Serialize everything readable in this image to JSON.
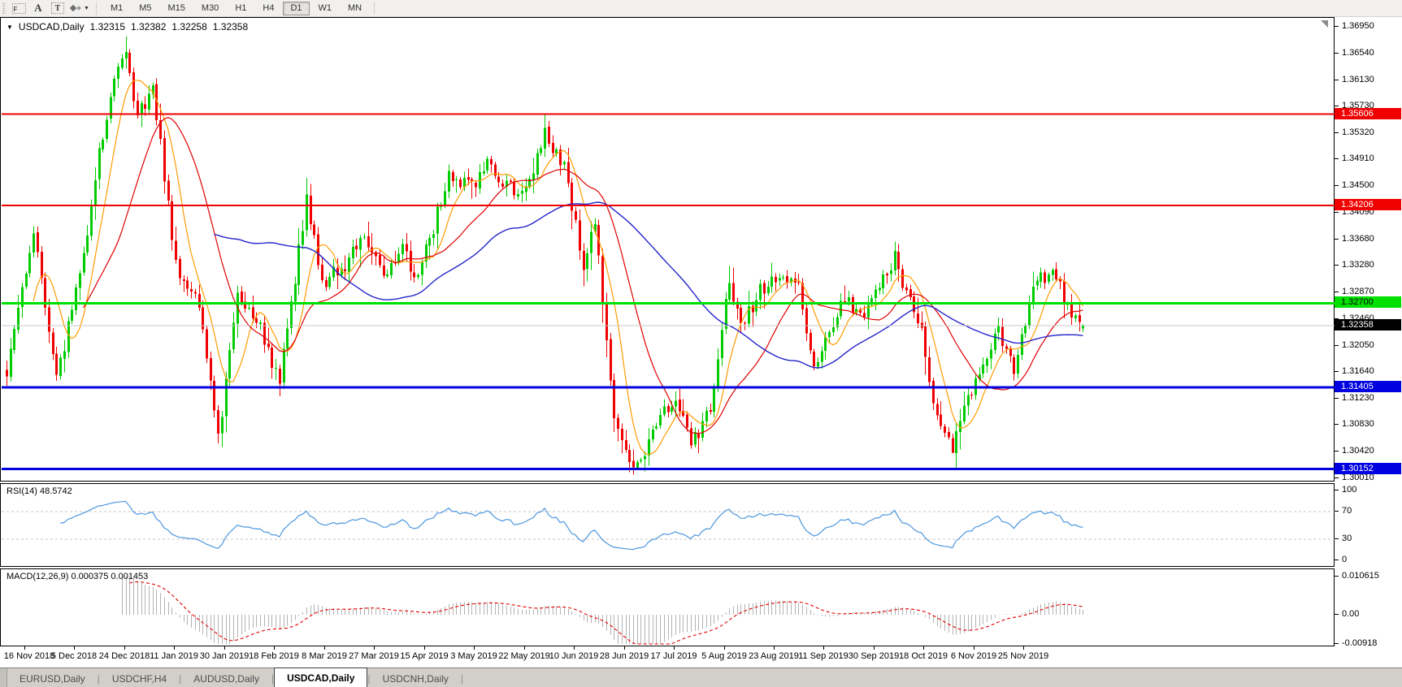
{
  "toolbar": {
    "tools": [
      {
        "name": "chart-f-tool",
        "label": "F"
      },
      {
        "name": "font-tool",
        "label": "A"
      },
      {
        "name": "text-tool",
        "label": "T"
      },
      {
        "name": "objects-tool",
        "label": ""
      }
    ],
    "timeframes": [
      "M1",
      "M5",
      "M15",
      "M30",
      "H1",
      "H4",
      "D1",
      "W1",
      "MN"
    ],
    "active_timeframe": "D1"
  },
  "chart": {
    "title": {
      "symbol": "USDCAD,Daily",
      "open": "1.32315",
      "high": "1.32382",
      "low": "1.32258",
      "close": "1.32358"
    }
  },
  "chart_data": {
    "type": "candlestick",
    "symbol": "USDCAD",
    "timeframe": "Daily",
    "last_ohlc": {
      "open": 1.32315,
      "high": 1.32382,
      "low": 1.32258,
      "close": 1.32358
    },
    "y_axis": {
      "min": 1.3001,
      "max": 1.3695,
      "ticks": [
        "1.36950",
        "1.36540",
        "1.36130",
        "1.35730",
        "1.35320",
        "1.34910",
        "1.34500",
        "1.34090",
        "1.33680",
        "1.33280",
        "1.32870",
        "1.32460",
        "1.32050",
        "1.31640",
        "1.31230",
        "1.30830",
        "1.30420",
        "1.30010"
      ]
    },
    "x_axis": {
      "ticks": [
        "16 Nov 2018",
        "5 Dec 2018",
        "24 Dec 2018",
        "11 Jan 2019",
        "30 Jan 2019",
        "18 Feb 2019",
        "8 Mar 2019",
        "27 Mar 2019",
        "15 Apr 2019",
        "3 May 2019",
        "22 May 2019",
        "10 Jun 2019",
        "28 Jun 2019",
        "17 Jul 2019",
        "5 Aug 2019",
        "23 Aug 2019",
        "11 Sep 2019",
        "30 Sep 2019",
        "18 Oct 2019",
        "6 Nov 2019",
        "25 Nov 2019"
      ]
    },
    "horizontal_lines": [
      {
        "price": 1.35606,
        "label": "1.35606",
        "color": "#f00000",
        "text": "#ffffff",
        "width": 2,
        "type": "resistance"
      },
      {
        "price": 1.34206,
        "label": "1.34206",
        "color": "#f00000",
        "text": "#ffffff",
        "width": 2,
        "type": "resistance"
      },
      {
        "price": 1.327,
        "label": "1.32700",
        "color": "#00e000",
        "text": "#000000",
        "width": 3,
        "type": "pivot"
      },
      {
        "price": 1.31405,
        "label": "1.31405",
        "color": "#0000e0",
        "text": "#ffffff",
        "width": 3,
        "type": "support"
      },
      {
        "price": 1.30152,
        "label": "1.30152",
        "color": "#0000e0",
        "text": "#ffffff",
        "width": 3,
        "type": "support"
      }
    ],
    "current_price": {
      "value": 1.32358,
      "label": "1.32358",
      "line_color": "#c8c8c8",
      "flag_bg": "#000000",
      "flag_text": "#ffffff"
    },
    "candles": {
      "count": 281,
      "up_color": "#00cc00",
      "down_color": "#f00000",
      "close_anchors": [
        [
          0,
          1.3165
        ],
        [
          7,
          1.338
        ],
        [
          13,
          1.315
        ],
        [
          20,
          1.3345
        ],
        [
          24,
          1.35
        ],
        [
          28,
          1.362
        ],
        [
          31,
          1.3655
        ],
        [
          34,
          1.3555
        ],
        [
          38,
          1.3605
        ],
        [
          44,
          1.333
        ],
        [
          50,
          1.327
        ],
        [
          55,
          1.306
        ],
        [
          60,
          1.328
        ],
        [
          66,
          1.323
        ],
        [
          71,
          1.315
        ],
        [
          78,
          1.343
        ],
        [
          82,
          1.33
        ],
        [
          88,
          1.333
        ],
        [
          93,
          1.337
        ],
        [
          98,
          1.331
        ],
        [
          103,
          1.335
        ],
        [
          107,
          1.331
        ],
        [
          115,
          1.3465
        ],
        [
          121,
          1.345
        ],
        [
          125,
          1.3485
        ],
        [
          130,
          1.345
        ],
        [
          135,
          1.3445
        ],
        [
          140,
          1.353
        ],
        [
          145,
          1.348
        ],
        [
          150,
          1.333
        ],
        [
          153,
          1.3395
        ],
        [
          158,
          1.309
        ],
        [
          161,
          1.304
        ],
        [
          164,
          1.3018
        ],
        [
          167,
          1.306
        ],
        [
          171,
          1.31
        ],
        [
          175,
          1.3115
        ],
        [
          178,
          1.3048
        ],
        [
          183,
          1.311
        ],
        [
          188,
          1.331
        ],
        [
          191,
          1.323
        ],
        [
          196,
          1.329
        ],
        [
          202,
          1.331
        ],
        [
          206,
          1.329
        ],
        [
          210,
          1.317
        ],
        [
          214,
          1.323
        ],
        [
          218,
          1.328
        ],
        [
          222,
          1.325
        ],
        [
          227,
          1.3295
        ],
        [
          231,
          1.334
        ],
        [
          235,
          1.327
        ],
        [
          238,
          1.323
        ],
        [
          242,
          1.309
        ],
        [
          246,
          1.3045
        ],
        [
          250,
          1.313
        ],
        [
          254,
          1.3165
        ],
        [
          258,
          1.323
        ],
        [
          262,
          1.317
        ],
        [
          268,
          1.331
        ],
        [
          273,
          1.3315
        ],
        [
          277,
          1.3245
        ],
        [
          280,
          1.32358
        ]
      ],
      "overrides": {
        "31": {
          "high": 1.368
        },
        "140": {
          "high": 1.356
        },
        "164": {
          "low": 1.30152
        },
        "246": {
          "low": 1.304
        },
        "280": {
          "open": 1.32315,
          "high": 1.32382,
          "low": 1.32258,
          "close": 1.32358
        }
      }
    },
    "moving_averages": [
      {
        "name": "ma-fast",
        "period": 8,
        "color": "#ff9c00"
      },
      {
        "name": "ma-mid",
        "period": 21,
        "color": "#e00000"
      },
      {
        "name": "ma-slow",
        "period": 55,
        "color": "#2424cc"
      }
    ],
    "rsi": {
      "label": "RSI(14) 48.5742",
      "period": 14,
      "current": 48.5742,
      "scale_ticks": [
        100,
        70,
        30,
        0
      ],
      "guide_levels": [
        70,
        30
      ],
      "color": "#4c97df"
    },
    "macd": {
      "label": "MACD(12,26,9) 0.000375 0.001453",
      "params": [
        12,
        26,
        9
      ],
      "main": 0.000375,
      "signal": 0.001453,
      "scale_ticks": [
        {
          "v": 0.010615,
          "label": "0.010615"
        },
        {
          "v": 0,
          "label": "0.00"
        },
        {
          "v": -0.00918,
          "label": "-0.00918"
        }
      ],
      "histogram_color": "#b3b3b3",
      "signal_color": "#e00000"
    }
  },
  "tabs": {
    "items": [
      "EURUSD,Daily",
      "USDCHF,H4",
      "AUDUSD,Daily",
      "USDCAD,Daily",
      "USDCNH,Daily"
    ],
    "active": "USDCAD,Daily"
  }
}
